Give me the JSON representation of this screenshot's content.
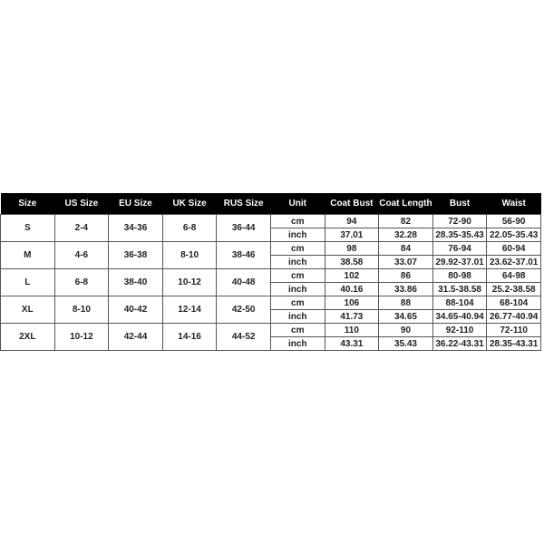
{
  "headers": [
    "Size",
    "US Size",
    "EU Size",
    "UK Size",
    "RUS Size",
    "Unit",
    "Coat Bust",
    "Coat Length",
    "Bust",
    "Waist"
  ],
  "rows": [
    {
      "size": "S",
      "us": "2-4",
      "eu": "34-36",
      "uk": "6-8",
      "rus": "36-44",
      "cm": [
        "cm",
        "94",
        "82",
        "72-90",
        "56-90"
      ],
      "inch": [
        "inch",
        "37.01",
        "32.28",
        "28.35-35.43",
        "22.05-35.43"
      ]
    },
    {
      "size": "M",
      "us": "4-6",
      "eu": "36-38",
      "uk": "8-10",
      "rus": "38-46",
      "cm": [
        "cm",
        "98",
        "84",
        "76-94",
        "60-94"
      ],
      "inch": [
        "inch",
        "38.58",
        "33.07",
        "29.92-37.01",
        "23.62-37.01"
      ]
    },
    {
      "size": "L",
      "us": "6-8",
      "eu": "38-40",
      "uk": "10-12",
      "rus": "40-48",
      "cm": [
        "cm",
        "102",
        "86",
        "80-98",
        "64-98"
      ],
      "inch": [
        "inch",
        "40.16",
        "33.86",
        "31.5-38.58",
        "25.2-38.58"
      ]
    },
    {
      "size": "XL",
      "us": "8-10",
      "eu": "40-42",
      "uk": "12-14",
      "rus": "42-50",
      "cm": [
        "cm",
        "106",
        "88",
        "88-104",
        "68-104"
      ],
      "inch": [
        "inch",
        "41.73",
        "34.65",
        "34.65-40.94",
        "26.77-40.94"
      ]
    },
    {
      "size": "2XL",
      "us": "10-12",
      "eu": "42-44",
      "uk": "14-16",
      "rus": "44-52",
      "cm": [
        "cm",
        "110",
        "90",
        "92-110",
        "72-110"
      ],
      "inch": [
        "inch",
        "43.31",
        "35.43",
        "36.22-43.31",
        "28.35-43.31"
      ]
    }
  ]
}
